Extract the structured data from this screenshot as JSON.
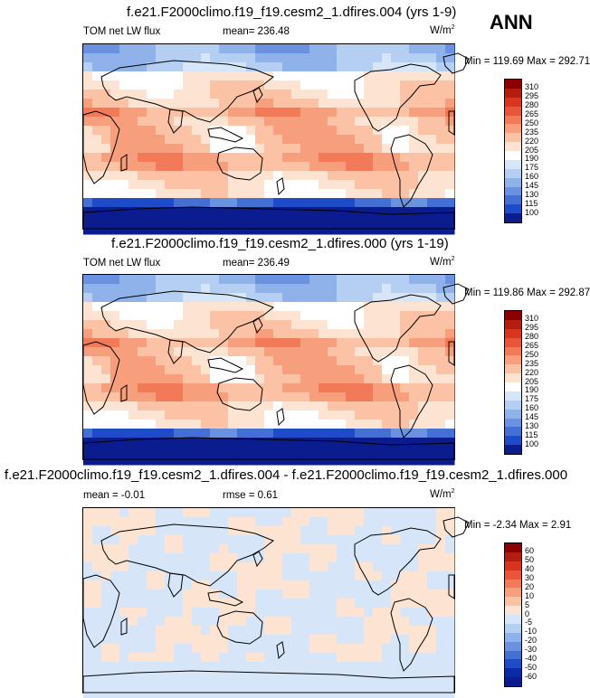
{
  "season": "ANN",
  "panels": [
    {
      "title": "f.e21.F2000climo.f19_f19.cesm2_1.dfires.004 (yrs 1-9)",
      "left_label": "TOM net LW flux",
      "center_label": "mean= 236.48",
      "units": "W/m",
      "units_sup": "2",
      "minmax": "Min = 119.69 Max = 292.71"
    },
    {
      "title": "f.e21.F2000climo.f19_f19.cesm2_1.dfires.000 (yrs 1-19)",
      "left_label": "TOM net LW flux",
      "center_label": "mean= 236.49",
      "units": "W/m",
      "units_sup": "2",
      "minmax": "Min = 119.86 Max = 292.87"
    },
    {
      "title": "f.e21.F2000climo.f19_f19.cesm2_1.dfires.004 - f.e21.F2000climo.f19_f19.cesm2_1.dfires.000",
      "left_label": "mean =  -0.01",
      "center_label": "rmse =  0.61",
      "units": "W/m",
      "units_sup": "2",
      "minmax": "Min =  -2.34 Max =  2.91"
    }
  ],
  "chart_data": [
    {
      "type": "heatmap",
      "variable": "TOM net LW flux",
      "mean": 236.48,
      "min": 119.69,
      "max": 292.71,
      "colorbar_levels": [
        310,
        295,
        280,
        265,
        250,
        235,
        220,
        205,
        190,
        175,
        160,
        145,
        130,
        115,
        100
      ],
      "colors": [
        "#8b0000",
        "#b41e10",
        "#d8351f",
        "#e8553a",
        "#f27a58",
        "#f79e7c",
        "#fbc2a6",
        "#fde3d2",
        "#ffffff",
        "#d6e6f8",
        "#b4cff2",
        "#8fb2ea",
        "#6a92e0",
        "#4470d4",
        "#1e4bc8",
        "#0b1c8e"
      ]
    },
    {
      "type": "heatmap",
      "variable": "TOM net LW flux",
      "mean": 236.49,
      "min": 119.86,
      "max": 292.87,
      "colorbar_levels": [
        310,
        295,
        280,
        265,
        250,
        235,
        220,
        205,
        190,
        175,
        160,
        145,
        130,
        115,
        100
      ],
      "colors": [
        "#8b0000",
        "#b41e10",
        "#d8351f",
        "#e8553a",
        "#f27a58",
        "#f79e7c",
        "#fbc2a6",
        "#fde3d2",
        "#ffffff",
        "#d6e6f8",
        "#b4cff2",
        "#8fb2ea",
        "#6a92e0",
        "#4470d4",
        "#1e4bc8",
        "#0b1c8e"
      ]
    },
    {
      "type": "heatmap",
      "variable": "difference",
      "mean": -0.01,
      "rmse": 0.61,
      "min": -2.34,
      "max": 2.91,
      "colorbar_levels": [
        60,
        50,
        40,
        30,
        20,
        10,
        5,
        0,
        -5,
        -10,
        -20,
        -30,
        -40,
        -50,
        -60
      ],
      "colors": [
        "#8b0000",
        "#b41e10",
        "#d8351f",
        "#e8553a",
        "#f27a58",
        "#f79e7c",
        "#fbc2a6",
        "#fde3d2",
        "#d6e6f8",
        "#b4cff2",
        "#8fb2ea",
        "#6a92e0",
        "#4470d4",
        "#1e4bc8",
        "#0b2aa8",
        "#0b1c8e"
      ]
    }
  ]
}
